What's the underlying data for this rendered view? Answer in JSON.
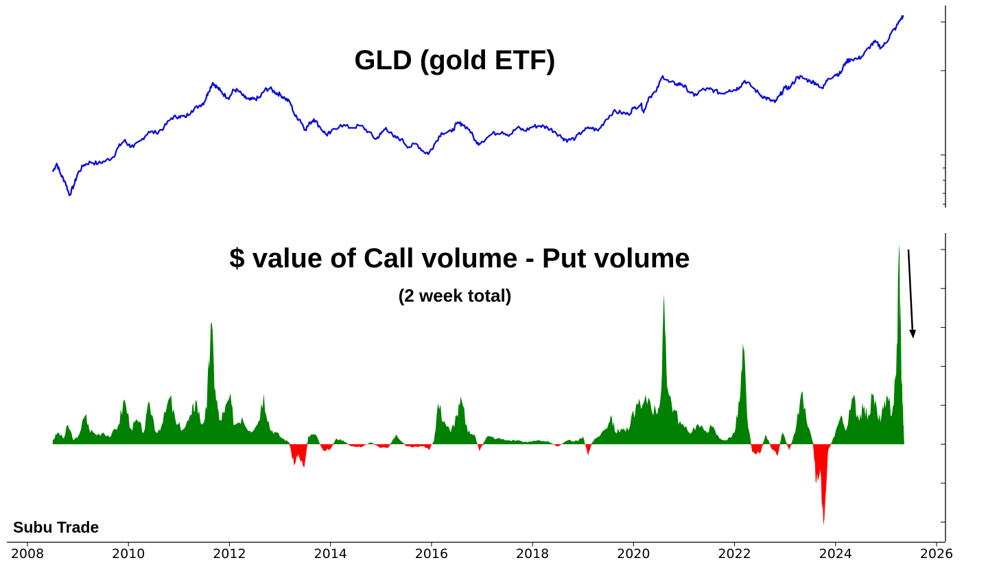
{
  "chart_data": [
    {
      "type": "line",
      "title": "GLD (gold ETF)",
      "x_unit": "year",
      "xlim": [
        2008,
        2026
      ],
      "scale": "log",
      "ylim": [
        70,
        310
      ],
      "color": "#0b0bd9",
      "points": [
        [
          2008.5,
          87
        ],
        [
          2008.58,
          93
        ],
        [
          2008.66,
          85
        ],
        [
          2008.75,
          80
        ],
        [
          2008.83,
          72
        ],
        [
          2008.92,
          78
        ],
        [
          2009.0,
          86
        ],
        [
          2009.12,
          92
        ],
        [
          2009.25,
          94
        ],
        [
          2009.4,
          93
        ],
        [
          2009.55,
          95
        ],
        [
          2009.7,
          98
        ],
        [
          2009.8,
          106
        ],
        [
          2009.92,
          112
        ],
        [
          2010.0,
          108
        ],
        [
          2010.1,
          106
        ],
        [
          2010.25,
          112
        ],
        [
          2010.4,
          120
        ],
        [
          2010.55,
          119
        ],
        [
          2010.7,
          124
        ],
        [
          2010.85,
          134
        ],
        [
          2011.0,
          136
        ],
        [
          2011.12,
          135
        ],
        [
          2011.25,
          142
        ],
        [
          2011.4,
          148
        ],
        [
          2011.5,
          152
        ],
        [
          2011.58,
          165
        ],
        [
          2011.67,
          178
        ],
        [
          2011.75,
          172
        ],
        [
          2011.83,
          166
        ],
        [
          2011.92,
          160
        ],
        [
          2012.0,
          158
        ],
        [
          2012.08,
          168
        ],
        [
          2012.17,
          167
        ],
        [
          2012.3,
          158
        ],
        [
          2012.4,
          155
        ],
        [
          2012.5,
          156
        ],
        [
          2012.6,
          158
        ],
        [
          2012.7,
          168
        ],
        [
          2012.8,
          170
        ],
        [
          2012.92,
          164
        ],
        [
          2013.0,
          162
        ],
        [
          2013.1,
          157
        ],
        [
          2013.2,
          152
        ],
        [
          2013.3,
          136
        ],
        [
          2013.4,
          132
        ],
        [
          2013.5,
          122
        ],
        [
          2013.6,
          129
        ],
        [
          2013.67,
          133
        ],
        [
          2013.8,
          124
        ],
        [
          2013.92,
          117
        ],
        [
          2014.0,
          119
        ],
        [
          2014.2,
          127
        ],
        [
          2014.4,
          124
        ],
        [
          2014.6,
          126
        ],
        [
          2014.75,
          120
        ],
        [
          2014.9,
          113
        ],
        [
          2015.0,
          118
        ],
        [
          2015.1,
          124
        ],
        [
          2015.25,
          115
        ],
        [
          2015.4,
          113
        ],
        [
          2015.55,
          106
        ],
        [
          2015.7,
          109
        ],
        [
          2015.85,
          102
        ],
        [
          2015.95,
          101
        ],
        [
          2016.05,
          108
        ],
        [
          2016.2,
          119
        ],
        [
          2016.4,
          120
        ],
        [
          2016.5,
          128
        ],
        [
          2016.6,
          128
        ],
        [
          2016.75,
          122
        ],
        [
          2016.9,
          109
        ],
        [
          2017.0,
          111
        ],
        [
          2017.2,
          118
        ],
        [
          2017.4,
          120
        ],
        [
          2017.55,
          117
        ],
        [
          2017.7,
          124
        ],
        [
          2017.85,
          121
        ],
        [
          2018.0,
          125
        ],
        [
          2018.15,
          126
        ],
        [
          2018.3,
          124
        ],
        [
          2018.45,
          120
        ],
        [
          2018.6,
          114
        ],
        [
          2018.7,
          112
        ],
        [
          2018.85,
          114
        ],
        [
          2019.0,
          121
        ],
        [
          2019.15,
          124
        ],
        [
          2019.3,
          121
        ],
        [
          2019.45,
          132
        ],
        [
          2019.6,
          141
        ],
        [
          2019.75,
          140
        ],
        [
          2019.9,
          138
        ],
        [
          2020.0,
          145
        ],
        [
          2020.15,
          150
        ],
        [
          2020.2,
          140
        ],
        [
          2020.3,
          158
        ],
        [
          2020.45,
          166
        ],
        [
          2020.58,
          188
        ],
        [
          2020.7,
          179
        ],
        [
          2020.85,
          176
        ],
        [
          2020.95,
          176
        ],
        [
          2021.05,
          170
        ],
        [
          2021.2,
          160
        ],
        [
          2021.35,
          168
        ],
        [
          2021.5,
          169
        ],
        [
          2021.6,
          167
        ],
        [
          2021.75,
          163
        ],
        [
          2021.9,
          168
        ],
        [
          2022.0,
          168
        ],
        [
          2022.1,
          172
        ],
        [
          2022.2,
          181
        ],
        [
          2022.35,
          172
        ],
        [
          2022.5,
          162
        ],
        [
          2022.6,
          158
        ],
        [
          2022.7,
          155
        ],
        [
          2022.8,
          152
        ],
        [
          2022.9,
          161
        ],
        [
          2023.0,
          171
        ],
        [
          2023.1,
          171
        ],
        [
          2023.25,
          187
        ],
        [
          2023.35,
          185
        ],
        [
          2023.5,
          180
        ],
        [
          2023.6,
          178
        ],
        [
          2023.75,
          170
        ],
        [
          2023.85,
          184
        ],
        [
          2024.0,
          190
        ],
        [
          2024.1,
          192
        ],
        [
          2024.2,
          210
        ],
        [
          2024.3,
          215
        ],
        [
          2024.45,
          216
        ],
        [
          2024.55,
          222
        ],
        [
          2024.7,
          241
        ],
        [
          2024.8,
          247
        ],
        [
          2024.9,
          236
        ],
        [
          2025.0,
          245
        ],
        [
          2025.1,
          265
        ],
        [
          2025.2,
          278
        ],
        [
          2025.3,
          299
        ],
        [
          2025.35,
          304
        ]
      ]
    },
    {
      "type": "area",
      "title": "$ value of Call volume - Put volume",
      "subtitle": "(2 week total)",
      "x_unit": "year",
      "xlim": [
        2008,
        2026
      ],
      "ylim": [
        -2.05,
        5.05
      ],
      "positive_color": "#008000",
      "negative_color": "#ff0000",
      "x": [
        2008.5,
        2008.6,
        2008.72,
        2008.8,
        2008.92,
        2009.0,
        2009.15,
        2009.22,
        2009.35,
        2009.5,
        2009.65,
        2009.8,
        2009.92,
        2010.05,
        2010.18,
        2010.3,
        2010.42,
        2010.55,
        2010.68,
        2010.82,
        2010.95,
        2011.1,
        2011.25,
        2011.33,
        2011.45,
        2011.55,
        2011.63,
        2011.72,
        2011.8,
        2011.9,
        2012.0,
        2012.1,
        2012.25,
        2012.4,
        2012.55,
        2012.68,
        2012.8,
        2012.92,
        2013.05,
        2013.18,
        2013.28,
        2013.36,
        2013.48,
        2013.56,
        2013.7,
        2013.85,
        2014.0,
        2014.12,
        2014.25,
        2014.4,
        2014.6,
        2014.8,
        2015.0,
        2015.15,
        2015.3,
        2015.5,
        2015.65,
        2015.85,
        2015.95,
        2016.05,
        2016.13,
        2016.25,
        2016.38,
        2016.5,
        2016.6,
        2016.72,
        2016.85,
        2016.95,
        2017.1,
        2017.3,
        2017.5,
        2017.7,
        2017.9,
        2018.1,
        2018.3,
        2018.5,
        2018.7,
        2018.9,
        2019.0,
        2019.1,
        2019.18,
        2019.3,
        2019.45,
        2019.55,
        2019.65,
        2019.75,
        2019.9,
        2020.05,
        2020.15,
        2020.3,
        2020.45,
        2020.55,
        2020.61,
        2020.68,
        2020.8,
        2020.95,
        2021.1,
        2021.25,
        2021.4,
        2021.55,
        2021.7,
        2021.85,
        2022.0,
        2022.1,
        2022.18,
        2022.25,
        2022.35,
        2022.5,
        2022.62,
        2022.75,
        2022.85,
        2022.95,
        2023.08,
        2023.2,
        2023.32,
        2023.45,
        2023.55,
        2023.62,
        2023.7,
        2023.76,
        2023.85,
        2023.95,
        2024.1,
        2024.22,
        2024.35,
        2024.45,
        2024.55,
        2024.65,
        2024.75,
        2024.85,
        2024.95,
        2025.05,
        2025.12,
        2025.2,
        2025.26,
        2025.3,
        2025.33,
        2025.36
      ],
      "y": [
        0.1,
        0.3,
        0.15,
        0.5,
        0.1,
        0.2,
        0.75,
        0.4,
        0.25,
        0.3,
        0.2,
        0.5,
        1.15,
        0.4,
        0.6,
        0.3,
        1.05,
        0.3,
        0.55,
        1.2,
        0.5,
        0.4,
        0.75,
        1.15,
        0.5,
        0.9,
        3.1,
        1.4,
        0.6,
        0.8,
        1.2,
        0.5,
        0.7,
        0.35,
        0.5,
        1.3,
        0.4,
        0.3,
        0.15,
        0.05,
        -0.55,
        -0.25,
        -0.6,
        0.2,
        0.25,
        -0.15,
        -0.12,
        0.15,
        0.1,
        -0.05,
        -0.08,
        0.05,
        -0.1,
        -0.08,
        0.25,
        -0.05,
        -0.07,
        -0.05,
        -0.15,
        0.1,
        1.05,
        0.6,
        0.3,
        0.75,
        1.1,
        0.3,
        0.25,
        -0.18,
        0.2,
        0.15,
        0.1,
        0.1,
        0.05,
        0.1,
        0.08,
        -0.06,
        0.1,
        0.08,
        0.2,
        -0.3,
        0.05,
        0.2,
        0.4,
        0.75,
        0.3,
        0.4,
        0.35,
        1.0,
        0.9,
        1.2,
        0.8,
        1.4,
        3.6,
        1.4,
        0.9,
        0.5,
        0.3,
        0.5,
        0.35,
        0.45,
        0.15,
        0.1,
        0.3,
        1.1,
        2.45,
        0.7,
        -0.2,
        -0.25,
        0.25,
        -0.15,
        -0.3,
        0.3,
        -0.15,
        0.3,
        1.3,
        0.45,
        0.05,
        -1.0,
        -0.65,
        -2.1,
        -0.2,
        0.15,
        0.7,
        0.4,
        1.2,
        0.7,
        0.9,
        0.75,
        1.3,
        0.6,
        0.9,
        1.1,
        0.8,
        1.8,
        5.15,
        2.2,
        1.0,
        0.0
      ]
    }
  ],
  "x_axis": {
    "ticks": [
      "2008",
      "2010",
      "2012",
      "2014",
      "2016",
      "2018",
      "2020",
      "2022",
      "2024",
      "2026"
    ]
  },
  "watermark": "Subu Trade"
}
